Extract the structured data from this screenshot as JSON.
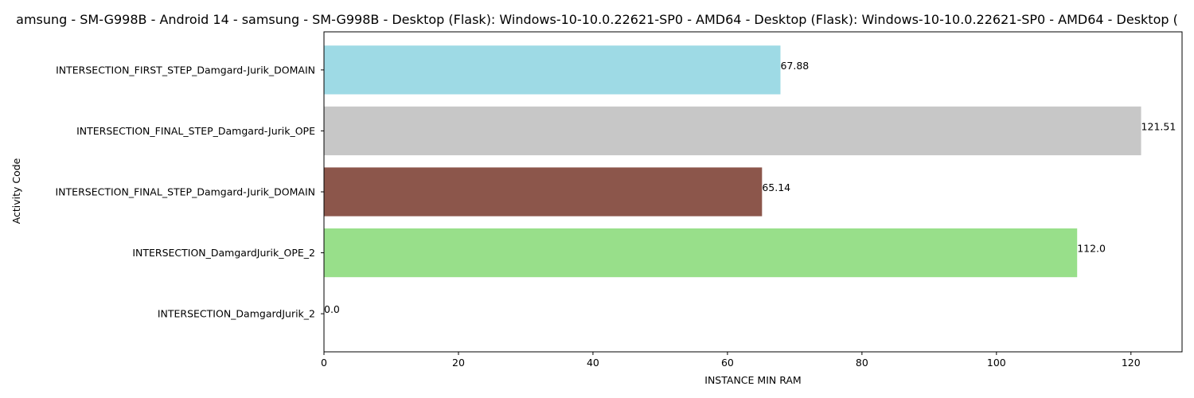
{
  "chart_data": {
    "type": "bar",
    "orientation": "horizontal",
    "title": "amsung - SM-G998B - Android 14 - samsung - SM-G998B - Desktop (Flask): Windows-10-10.0.22621-SP0 - AMD64 - Desktop (Flask): Windows-10-10.0.22621-SP0 - AMD64 - Desktop (",
    "xlabel": "INSTANCE MIN RAM",
    "ylabel": "Activity Code",
    "xlim": [
      0,
      127.6
    ],
    "xticks": [
      0,
      20,
      40,
      60,
      80,
      100,
      120
    ],
    "categories": [
      "INTERSECTION_FIRST_STEP_Damgard-Jurik_DOMAIN",
      "INTERSECTION_FINAL_STEP_Damgard-Jurik_OPE",
      "INTERSECTION_FINAL_STEP_Damgard-Jurik_DOMAIN",
      "INTERSECTION_DamgardJurik_OPE_2",
      "INTERSECTION_DamgardJurik_2"
    ],
    "values": [
      67.88,
      121.51,
      65.14,
      112.0,
      0.0
    ],
    "value_labels": [
      "67.88",
      "121.51",
      "65.14",
      "112.0",
      "0.0"
    ],
    "colors": [
      "#9edae5",
      "#c7c7c7",
      "#8c564b",
      "#98df8a",
      "#1f77b4"
    ],
    "grid": false,
    "legend": "none"
  }
}
